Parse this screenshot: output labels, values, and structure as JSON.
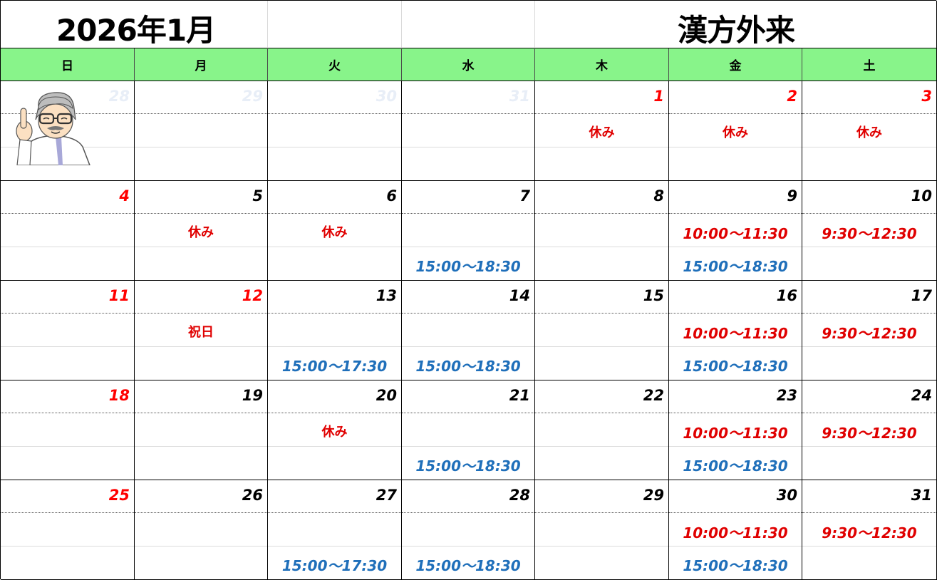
{
  "title": {
    "month": "2026年1月",
    "clinic": "漢方外来"
  },
  "weekdays": [
    "日",
    "月",
    "火",
    "水",
    "木",
    "金",
    "土"
  ],
  "colors": {
    "header_bg": "#88f48a",
    "red": "#ff0000",
    "blue": "#1f6fba"
  },
  "illustration": "doctor-pointing-icon",
  "weeks": [
    [
      {
        "day": "28",
        "color": "faded",
        "slot1": "",
        "slot2": ""
      },
      {
        "day": "29",
        "color": "faded",
        "slot1": "",
        "slot2": ""
      },
      {
        "day": "30",
        "color": "faded",
        "slot1": "",
        "slot2": ""
      },
      {
        "day": "31",
        "color": "faded",
        "slot1": "",
        "slot2": ""
      },
      {
        "day": "1",
        "color": "red",
        "slot1": "休み",
        "slot2": ""
      },
      {
        "day": "2",
        "color": "red",
        "slot1": "休み",
        "slot2": ""
      },
      {
        "day": "3",
        "color": "red",
        "slot1": "休み",
        "slot2": ""
      }
    ],
    [
      {
        "day": "4",
        "color": "red",
        "slot1": "",
        "slot2": ""
      },
      {
        "day": "5",
        "color": "black",
        "slot1": "休み",
        "slot2": ""
      },
      {
        "day": "6",
        "color": "black",
        "slot1": "休み",
        "slot2": ""
      },
      {
        "day": "7",
        "color": "black",
        "slot1": "",
        "slot2": "15:00～18:30"
      },
      {
        "day": "8",
        "color": "black",
        "slot1": "",
        "slot2": ""
      },
      {
        "day": "9",
        "color": "black",
        "slot1": "10:00～11:30",
        "slot2": "15:00～18:30"
      },
      {
        "day": "10",
        "color": "black",
        "slot1": "9:30～12:30",
        "slot2": ""
      }
    ],
    [
      {
        "day": "11",
        "color": "red",
        "slot1": "",
        "slot2": ""
      },
      {
        "day": "12",
        "color": "red",
        "slot1": "祝日",
        "slot2": "",
        "holiday": true
      },
      {
        "day": "13",
        "color": "black",
        "slot1": "",
        "slot2": "15:00～17:30"
      },
      {
        "day": "14",
        "color": "black",
        "slot1": "",
        "slot2": "15:00～18:30"
      },
      {
        "day": "15",
        "color": "black",
        "slot1": "",
        "slot2": ""
      },
      {
        "day": "16",
        "color": "black",
        "slot1": "10:00～11:30",
        "slot2": "15:00～18:30"
      },
      {
        "day": "17",
        "color": "black",
        "slot1": "9:30～12:30",
        "slot2": ""
      }
    ],
    [
      {
        "day": "18",
        "color": "red",
        "slot1": "",
        "slot2": ""
      },
      {
        "day": "19",
        "color": "black",
        "slot1": "",
        "slot2": ""
      },
      {
        "day": "20",
        "color": "black",
        "slot1": "休み",
        "slot2": ""
      },
      {
        "day": "21",
        "color": "black",
        "slot1": "",
        "slot2": "15:00～18:30"
      },
      {
        "day": "22",
        "color": "black",
        "slot1": "",
        "slot2": ""
      },
      {
        "day": "23",
        "color": "black",
        "slot1": "10:00～11:30",
        "slot2": "15:00～18:30"
      },
      {
        "day": "24",
        "color": "black",
        "slot1": "9:30～12:30",
        "slot2": ""
      }
    ],
    [
      {
        "day": "25",
        "color": "red",
        "slot1": "",
        "slot2": ""
      },
      {
        "day": "26",
        "color": "black",
        "slot1": "",
        "slot2": ""
      },
      {
        "day": "27",
        "color": "black",
        "slot1": "",
        "slot2": "15:00～17:30"
      },
      {
        "day": "28",
        "color": "black",
        "slot1": "",
        "slot2": "15:00～18:30"
      },
      {
        "day": "29",
        "color": "black",
        "slot1": "",
        "slot2": ""
      },
      {
        "day": "30",
        "color": "black",
        "slot1": "10:00～11:30",
        "slot2": "15:00～18:30"
      },
      {
        "day": "31",
        "color": "black",
        "slot1": "9:30～12:30",
        "slot2": ""
      }
    ]
  ]
}
